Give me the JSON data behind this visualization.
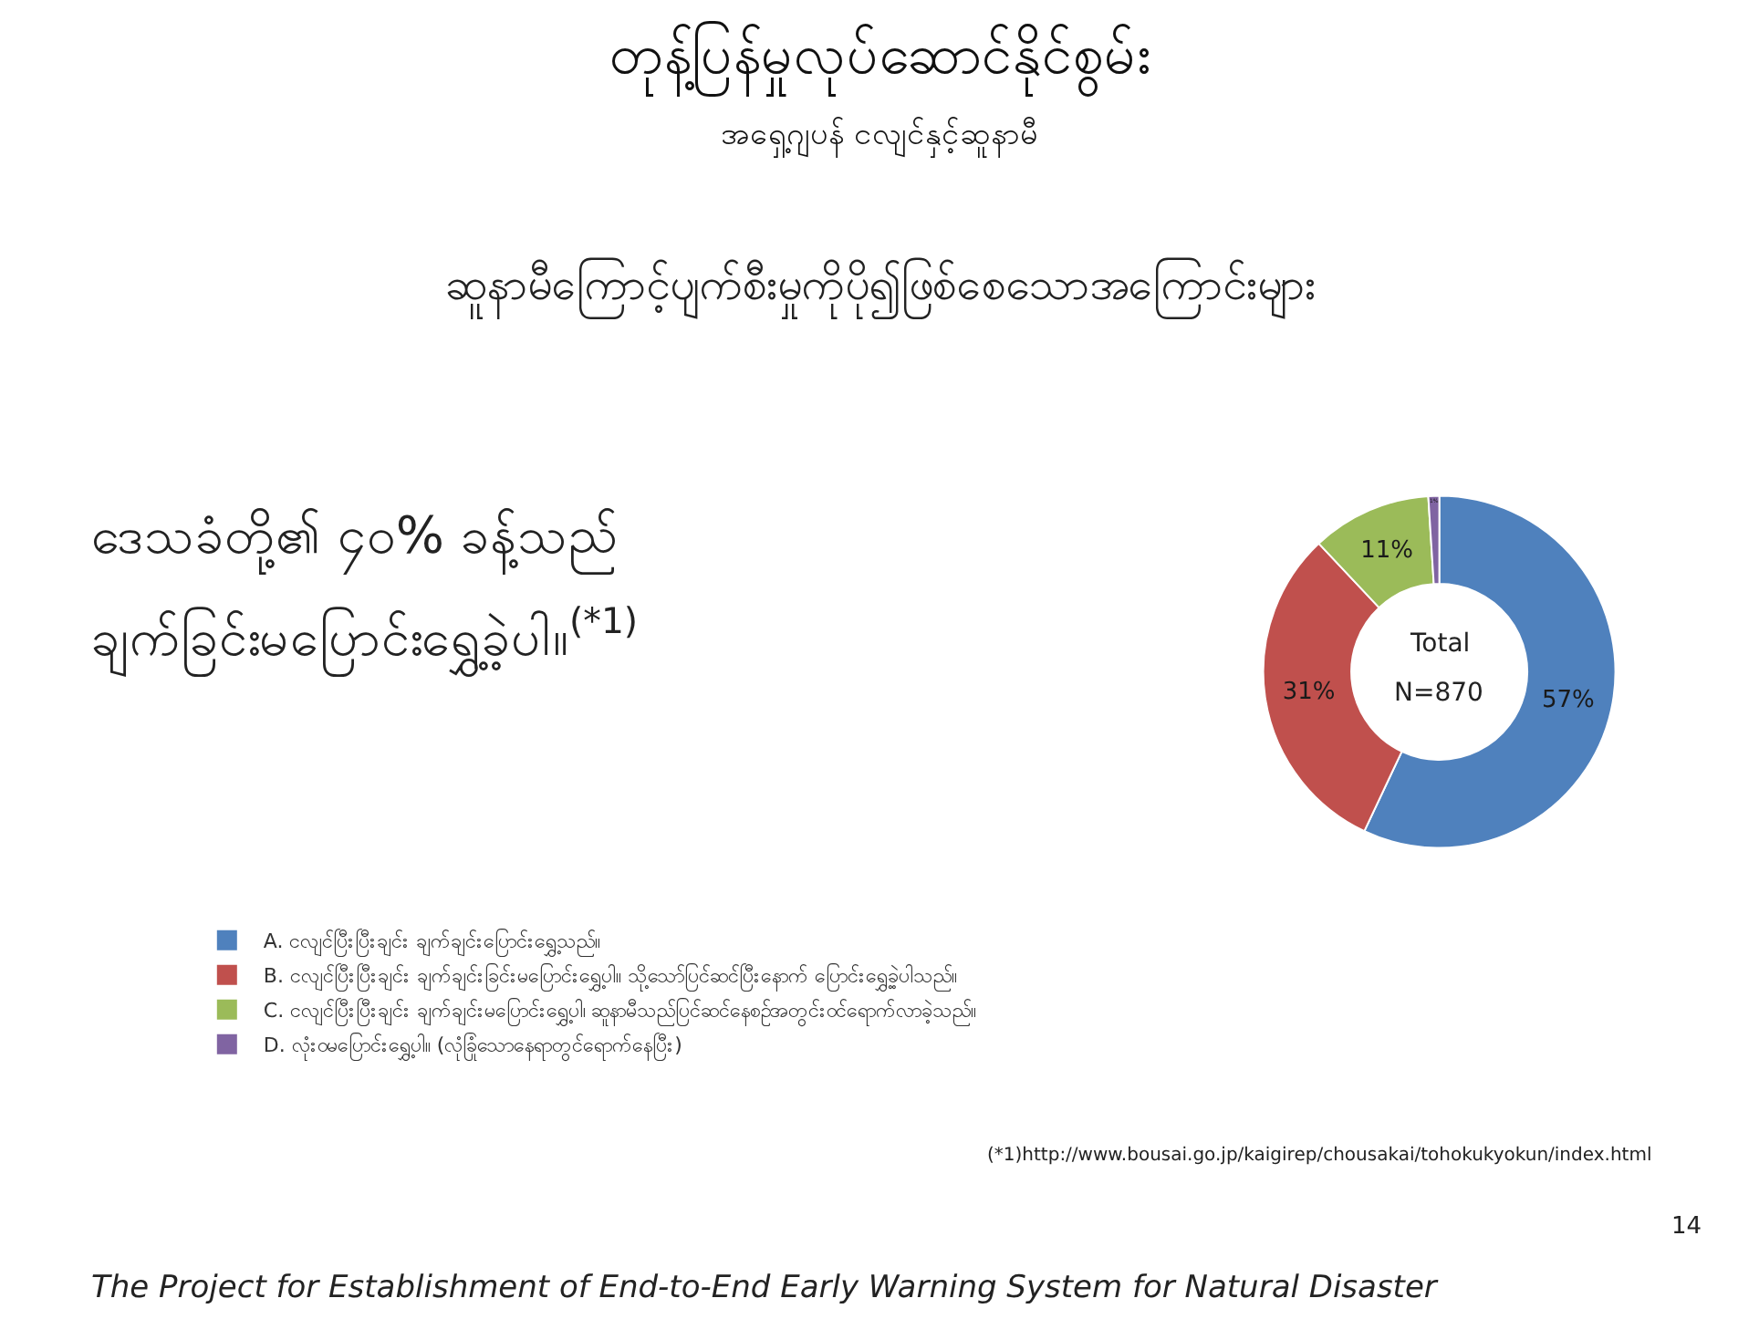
{
  "chart_data": {
    "type": "donut",
    "title": "တုန့်ပြန်မှုလုပ်ဆောင်နိုင်စွမ်း",
    "subtitle": "အရှေ့ဂျပန် ငလျင်နှင့်ဆူနာမီ",
    "categories": [
      "A. ငလျင်ပြီးပြီးချင်း ချက်ချင်းပြောင်းရွှေ့သည်။",
      "B. ငလျင်ပြီးပြီးချင်း ချက်ချင်းခြင်းမပြောင်းရွှေ့ပါ။ သို့သော်ပြင်ဆင်ပြီးနောက် ပြောင်းရွှေ့ခဲ့ပါသည်။",
      "C. ငလျင်ပြီးပြီးချင်း ချက်ချင်းမပြောင်းရွှေ့ပါ၊ ဆူနာမီသည်ပြင်ဆင်နေစဉ်အတွင်းဝင်ရောက်လာခဲ့သည်။",
      "D. လုံးဝမပြောင်းရွှေ့ပါ။ (လုံခြုံသောနေရာတွင်ရောက်နေပြီး)"
    ],
    "values": [
      57,
      31,
      11,
      1
    ],
    "value_labels": [
      "57%",
      "31%",
      "11%",
      "1%"
    ],
    "colors": [
      "#4f81bd",
      "#c0504d",
      "#9bbb59",
      "#8064a2"
    ],
    "legend": "bottom left",
    "annotations": [
      "ဆူနာမီကြောင့်ပျက်စီးမှုကိုပို၍ဖြစ်စေသောအကြောင်းများ",
      "ဒေသခံတို့၏ ၄၀% ခန့်သည်",
      "ချက်ခြင်းမပြောင်းရွှေ့ခဲ့ပါ။$^{(*1)}$",
      "Total",
      "N=870",
      "(*1)http://www.bousai.go.jp/kaigirep/chousakai/tohokukyokun/index.html",
      "14",
      "The Project for Establishment of End-to-End Early Warning System for Natural Disaster"
    ]
  }
}
